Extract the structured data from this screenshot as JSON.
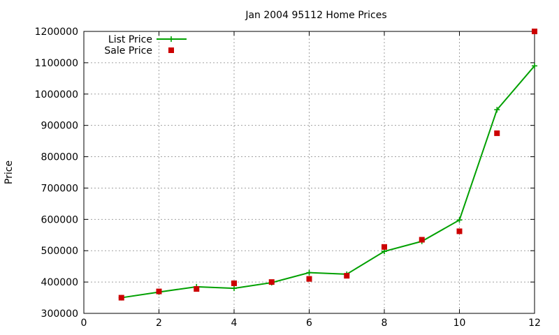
{
  "chart_data": {
    "type": "line",
    "title": "Jan 2004 95112 Home Prices",
    "xlabel": "",
    "ylabel": "Price",
    "xlim": [
      0,
      12
    ],
    "ylim": [
      300000,
      1200000
    ],
    "x_ticks": [
      "0",
      "2",
      "4",
      "6",
      "8",
      "10",
      "12"
    ],
    "y_ticks": [
      "300000",
      "400000",
      "500000",
      "600000",
      "700000",
      "800000",
      "900000",
      "1000000",
      "1100000",
      "1200000"
    ],
    "grid": true,
    "legend_position": "top-left",
    "series": [
      {
        "name": "List Price",
        "style": "line-with-plus-markers",
        "color": "#00a000",
        "x": [
          1,
          2,
          3,
          4,
          5,
          6,
          7,
          8,
          9,
          10,
          11,
          12
        ],
        "y": [
          350000,
          368000,
          385000,
          380000,
          398000,
          430000,
          425000,
          498000,
          530000,
          598000,
          950000,
          1090000
        ]
      },
      {
        "name": "Sale Price",
        "style": "square-markers",
        "color": "#cc0000",
        "x": [
          1,
          2,
          3,
          4,
          5,
          6,
          7,
          8,
          9,
          10,
          11,
          12
        ],
        "y": [
          350000,
          370000,
          378000,
          396000,
          400000,
          410000,
          420000,
          512000,
          535000,
          562000,
          875000,
          1200000
        ]
      }
    ]
  }
}
